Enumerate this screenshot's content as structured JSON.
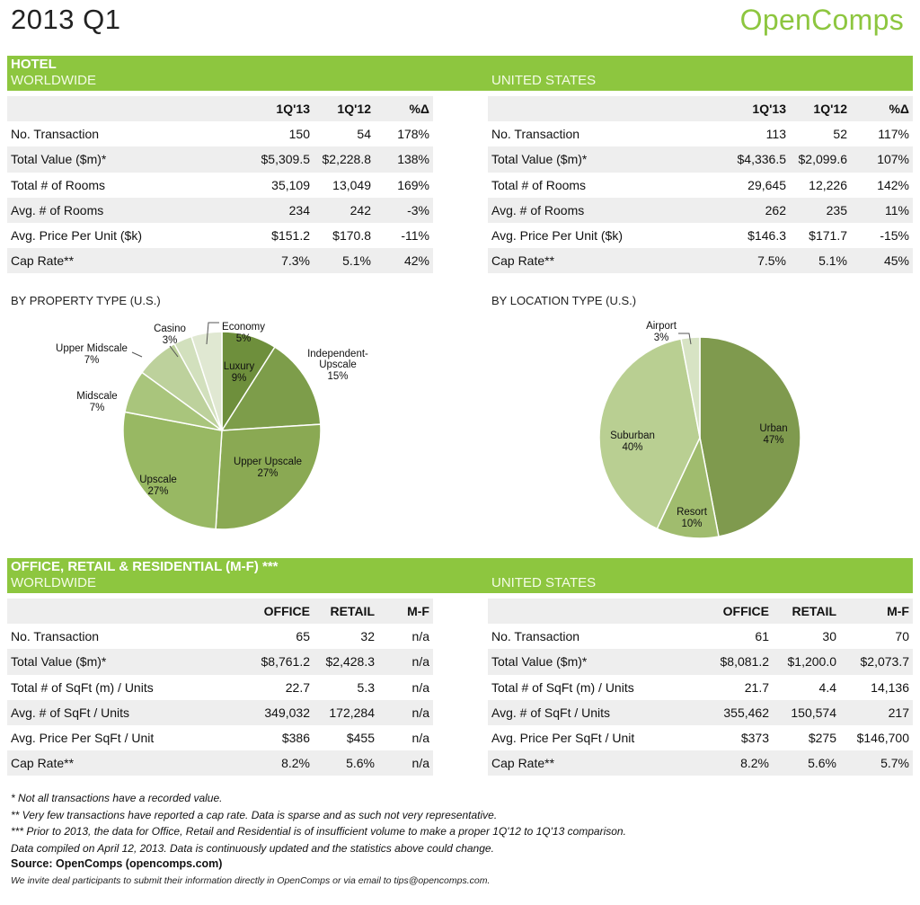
{
  "header": {
    "title": "2013 Q1",
    "brand": "OpenComps"
  },
  "hotel": {
    "heading": "HOTEL",
    "worldwide": {
      "region": "WORLDWIDE",
      "columns": [
        "1Q'13",
        "1Q'12",
        "%Δ"
      ],
      "rows": [
        {
          "label": "No. Transaction",
          "values": [
            "150",
            "54",
            "178%"
          ]
        },
        {
          "label": "Total Value ($m)*",
          "values": [
            "$5,309.5",
            "$2,228.8",
            "138%"
          ]
        },
        {
          "label": "Total # of Rooms",
          "values": [
            "35,109",
            "13,049",
            "169%"
          ]
        },
        {
          "label": "Avg. # of Rooms",
          "values": [
            "234",
            "242",
            "-3%"
          ]
        },
        {
          "label": "Avg. Price Per Unit ($k)",
          "values": [
            "$151.2",
            "$170.8",
            "-11%"
          ]
        },
        {
          "label": "Cap Rate**",
          "values": [
            "7.3%",
            "5.1%",
            "42%"
          ]
        }
      ]
    },
    "us": {
      "region": "UNITED STATES",
      "columns": [
        "1Q'13",
        "1Q'12",
        "%Δ"
      ],
      "rows": [
        {
          "label": "No. Transaction",
          "values": [
            "113",
            "52",
            "117%"
          ]
        },
        {
          "label": "Total Value ($m)*",
          "values": [
            "$4,336.5",
            "$2,099.6",
            "107%"
          ]
        },
        {
          "label": "Total # of Rooms",
          "values": [
            "29,645",
            "12,226",
            "142%"
          ]
        },
        {
          "label": "Avg. # of Rooms",
          "values": [
            "262",
            "235",
            "11%"
          ]
        },
        {
          "label": "Avg. Price Per Unit ($k)",
          "values": [
            "$146.3",
            "$171.7",
            "-15%"
          ]
        },
        {
          "label": "Cap Rate**",
          "values": [
            "7.5%",
            "5.1%",
            "45%"
          ]
        }
      ]
    }
  },
  "chart_data": [
    {
      "type": "pie",
      "title": "BY PROPERTY TYPE (U.S.)",
      "categories": [
        "Luxury",
        "Independent-Upscale",
        "Upper Upscale",
        "Upscale",
        "Midscale",
        "Upper Midscale",
        "Casino",
        "Economy"
      ],
      "labels": [
        "Luxury",
        "Independent- Upscale",
        "Upper Upscale",
        "Upscale",
        "Midscale",
        "Upper Midscale",
        "Casino",
        "Economy"
      ],
      "values": [
        9,
        15,
        27,
        27,
        7,
        7,
        3,
        5
      ],
      "value_labels": [
        "9%",
        "15%",
        "27%",
        "27%",
        "7%",
        "7%",
        "3%",
        "5%"
      ],
      "colors": [
        "#6e8f3c",
        "#7d9d4a",
        "#8aa953",
        "#98b863",
        "#a9c57c",
        "#bdd19c",
        "#d2e0bd",
        "#e0e8d2"
      ]
    },
    {
      "type": "pie",
      "title": "BY LOCATION TYPE (U.S.)",
      "categories": [
        "Urban",
        "Resort",
        "Suburban",
        "Airport"
      ],
      "values": [
        47,
        10,
        40,
        3
      ],
      "value_labels": [
        "47%",
        "10%",
        "40%",
        "3%"
      ],
      "colors": [
        "#7f9a4e",
        "#a0bc6e",
        "#b9cf92",
        "#d7e3c4"
      ]
    }
  ],
  "cre": {
    "heading": "OFFICE, RETAIL & RESIDENTIAL (M-F) ***",
    "worldwide": {
      "region": "WORLDWIDE",
      "columns": [
        "OFFICE",
        "RETAIL",
        "M-F"
      ],
      "rows": [
        {
          "label": "No. Transaction",
          "values": [
            "65",
            "32",
            "n/a"
          ]
        },
        {
          "label": "Total Value ($m)*",
          "values": [
            "$8,761.2",
            "$2,428.3",
            "n/a"
          ]
        },
        {
          "label": "Total # of SqFt (m) / Units",
          "values": [
            "22.7",
            "5.3",
            "n/a"
          ]
        },
        {
          "label": "Avg. # of SqFt / Units",
          "values": [
            "349,032",
            "172,284",
            "n/a"
          ]
        },
        {
          "label": "Avg. Price Per SqFt / Unit",
          "values": [
            "$386",
            "$455",
            "n/a"
          ]
        },
        {
          "label": "Cap Rate**",
          "values": [
            "8.2%",
            "5.6%",
            "n/a"
          ]
        }
      ]
    },
    "us": {
      "region": "UNITED STATES",
      "columns": [
        "OFFICE",
        "RETAIL",
        "M-F"
      ],
      "rows": [
        {
          "label": "No. Transaction",
          "values": [
            "61",
            "30",
            "70"
          ]
        },
        {
          "label": "Total Value ($m)*",
          "values": [
            "$8,081.2",
            "$1,200.0",
            "$2,073.7"
          ]
        },
        {
          "label": "Total # of SqFt (m) / Units",
          "values": [
            "21.7",
            "4.4",
            "14,136"
          ]
        },
        {
          "label": "Avg. # of SqFt / Units",
          "values": [
            "355,462",
            "150,574",
            "217"
          ]
        },
        {
          "label": "Avg. Price Per SqFt / Unit",
          "values": [
            "$373",
            "$275",
            "$146,700"
          ]
        },
        {
          "label": "Cap Rate**",
          "values": [
            "8.2%",
            "5.6%",
            "5.7%"
          ]
        }
      ]
    }
  },
  "footer": {
    "notes": [
      "* Not all transactions have a recorded value.",
      "** Very few transactions have reported a cap rate. Data is sparse and as such not very representative.",
      "*** Prior to 2013, the data for Office, Retail and Residential is of insufficient volume to make a proper 1Q'12 to 1Q'13 comparison.",
      "Data compiled on April 12, 2013. Data is continuously updated and the statistics above could change."
    ],
    "source": "Source: OpenComps (opencomps.com)",
    "invite": "We invite deal participants to submit their information directly in OpenComps or via email to tips@opencomps.com."
  }
}
